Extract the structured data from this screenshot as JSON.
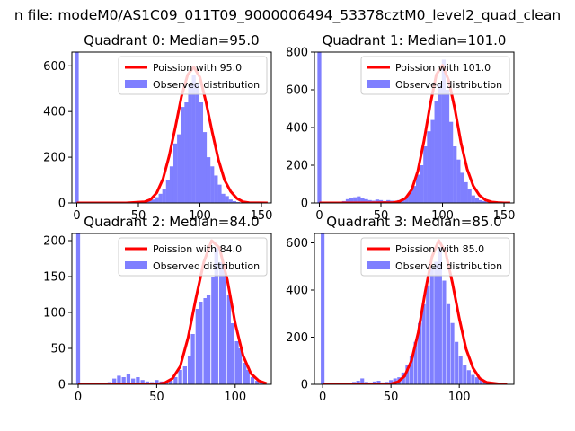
{
  "suptitle": "n file: modeM0/AS1C09_011T09_9000006494_53378cztM0_level2_quad_clean",
  "legend_labels": [
    "Poission with {median}",
    "Observed distribution"
  ],
  "colors": {
    "hist": "#7f7fff",
    "poisson": "#ff0000",
    "peak_glow": "#ff9999",
    "axis": "#000000"
  },
  "chart_data": [
    {
      "type": "bar",
      "title": "Quadrant 0: Median=95.0",
      "median": 95.0,
      "poisson_label": "Poission with 95.0",
      "observed_label": "Observed distribution",
      "legend_loc": "upper right",
      "xlim": [
        -4,
        158
      ],
      "ylim": [
        0,
        660
      ],
      "xticks": [
        0,
        50,
        100,
        150
      ],
      "yticks": [
        0,
        200,
        400,
        600
      ],
      "bin_width": 3.1,
      "zero_bin_value": 660,
      "hist_x": [
        53,
        56,
        59,
        62,
        65,
        68,
        71,
        74,
        77,
        80,
        83,
        86,
        89,
        92,
        95,
        98,
        101,
        104,
        107,
        110,
        113,
        116,
        119,
        122,
        125,
        128,
        131,
        134
      ],
      "hist_y": [
        3,
        5,
        8,
        15,
        25,
        40,
        60,
        100,
        160,
        260,
        300,
        420,
        440,
        520,
        560,
        520,
        440,
        310,
        200,
        160,
        120,
        80,
        40,
        30,
        15,
        8,
        4,
        2
      ],
      "poisson_x": [
        0,
        20,
        40,
        55,
        60,
        65,
        70,
        75,
        80,
        85,
        90,
        95,
        100,
        105,
        110,
        115,
        120,
        125,
        130,
        135,
        140,
        155
      ],
      "poisson_y": [
        0,
        0,
        0,
        5,
        15,
        45,
        105,
        205,
        330,
        465,
        560,
        595,
        550,
        440,
        310,
        190,
        100,
        50,
        20,
        5,
        1,
        0
      ]
    },
    {
      "type": "bar",
      "title": "Quadrant 1: Median=101.0",
      "median": 101.0,
      "poisson_label": "Poission with 101.0",
      "observed_label": "Observed distribution",
      "legend_loc": "upper right",
      "xlim": [
        -4,
        158
      ],
      "ylim": [
        0,
        800
      ],
      "xticks": [
        0,
        50,
        100,
        150
      ],
      "yticks": [
        0,
        200,
        400,
        600,
        800
      ],
      "bin_width": 3.1,
      "zero_bin_value": 800,
      "hist_x": [
        20,
        23,
        26,
        29,
        32,
        35,
        38,
        41,
        44,
        47,
        50,
        53,
        56,
        59,
        62,
        65,
        68,
        71,
        74,
        77,
        80,
        83,
        86,
        89,
        92,
        95,
        98,
        101,
        104,
        107,
        110,
        113,
        116,
        119,
        122,
        125,
        128,
        131,
        134,
        137,
        140
      ],
      "hist_y": [
        10,
        20,
        25,
        30,
        35,
        28,
        20,
        15,
        12,
        18,
        15,
        10,
        15,
        12,
        10,
        15,
        20,
        35,
        60,
        90,
        150,
        200,
        300,
        380,
        440,
        540,
        630,
        760,
        600,
        430,
        300,
        230,
        160,
        110,
        75,
        40,
        25,
        15,
        10,
        5,
        3
      ],
      "poisson_x": [
        0,
        20,
        40,
        60,
        65,
        70,
        75,
        80,
        85,
        90,
        95,
        100,
        105,
        110,
        115,
        120,
        125,
        130,
        135,
        140,
        145,
        150,
        155
      ],
      "poisson_y": [
        0,
        0,
        0,
        2,
        8,
        25,
        70,
        170,
        330,
        520,
        680,
        730,
        650,
        500,
        320,
        180,
        90,
        40,
        15,
        5,
        2,
        0,
        0
      ]
    },
    {
      "type": "bar",
      "title": "Quadrant 2: Median=84.0",
      "median": 84.0,
      "poisson_label": "Poission with 84.0",
      "observed_label": "Observed distribution",
      "legend_loc": "upper right",
      "xlim": [
        -4,
        123
      ],
      "ylim": [
        0,
        210
      ],
      "xticks": [
        0,
        50,
        100
      ],
      "yticks": [
        0,
        50,
        100,
        150,
        200
      ],
      "bin_width": 2.45,
      "zero_bin_value": 210,
      "hist_x": [
        20,
        23,
        26,
        29,
        32,
        35,
        38,
        41,
        44,
        47,
        50,
        53,
        56,
        59,
        62,
        65,
        68,
        71,
        73,
        76,
        78,
        81,
        83,
        86,
        88,
        91,
        93,
        96,
        98,
        101,
        103,
        106,
        108,
        111,
        114,
        117
      ],
      "hist_y": [
        3,
        8,
        12,
        10,
        14,
        8,
        10,
        6,
        4,
        3,
        6,
        4,
        3,
        5,
        10,
        20,
        25,
        40,
        70,
        105,
        115,
        120,
        125,
        150,
        190,
        170,
        160,
        125,
        85,
        60,
        50,
        30,
        20,
        10,
        5,
        3
      ],
      "poisson_x": [
        0,
        20,
        40,
        50,
        55,
        60,
        65,
        70,
        75,
        80,
        85,
        90,
        95,
        100,
        105,
        110,
        115,
        120
      ],
      "poisson_y": [
        0,
        0,
        0,
        0,
        2,
        8,
        25,
        65,
        120,
        170,
        200,
        190,
        145,
        85,
        40,
        15,
        5,
        1
      ]
    },
    {
      "type": "bar",
      "title": "Quadrant 3: Median=85.0",
      "median": 85.0,
      "poisson_label": "Poission with 85.0",
      "observed_label": "Observed distribution",
      "legend_loc": "upper right",
      "xlim": [
        -6,
        140
      ],
      "ylim": [
        0,
        640
      ],
      "xticks": [
        0,
        50,
        100
      ],
      "yticks": [
        0,
        200,
        400,
        600
      ],
      "bin_width": 2.7,
      "zero_bin_value": 640,
      "hist_x": [
        20,
        23,
        26,
        29,
        32,
        35,
        38,
        41,
        44,
        47,
        50,
        53,
        56,
        59,
        62,
        65,
        68,
        71,
        74,
        77,
        80,
        83,
        86,
        89,
        92,
        95,
        98,
        101,
        104,
        107,
        110,
        113,
        116,
        119,
        122,
        125,
        128
      ],
      "hist_y": [
        5,
        10,
        15,
        25,
        10,
        8,
        12,
        15,
        8,
        10,
        18,
        25,
        30,
        50,
        80,
        120,
        180,
        260,
        340,
        420,
        500,
        520,
        580,
        440,
        340,
        260,
        180,
        120,
        80,
        60,
        40,
        30,
        20,
        15,
        8,
        5,
        3
      ],
      "poisson_x": [
        0,
        20,
        40,
        50,
        55,
        60,
        65,
        70,
        75,
        80,
        85,
        90,
        95,
        100,
        105,
        110,
        115,
        120,
        130,
        135
      ],
      "poisson_y": [
        0,
        0,
        0,
        2,
        10,
        35,
        100,
        220,
        390,
        540,
        610,
        560,
        430,
        280,
        150,
        70,
        25,
        8,
        1,
        0
      ]
    }
  ]
}
